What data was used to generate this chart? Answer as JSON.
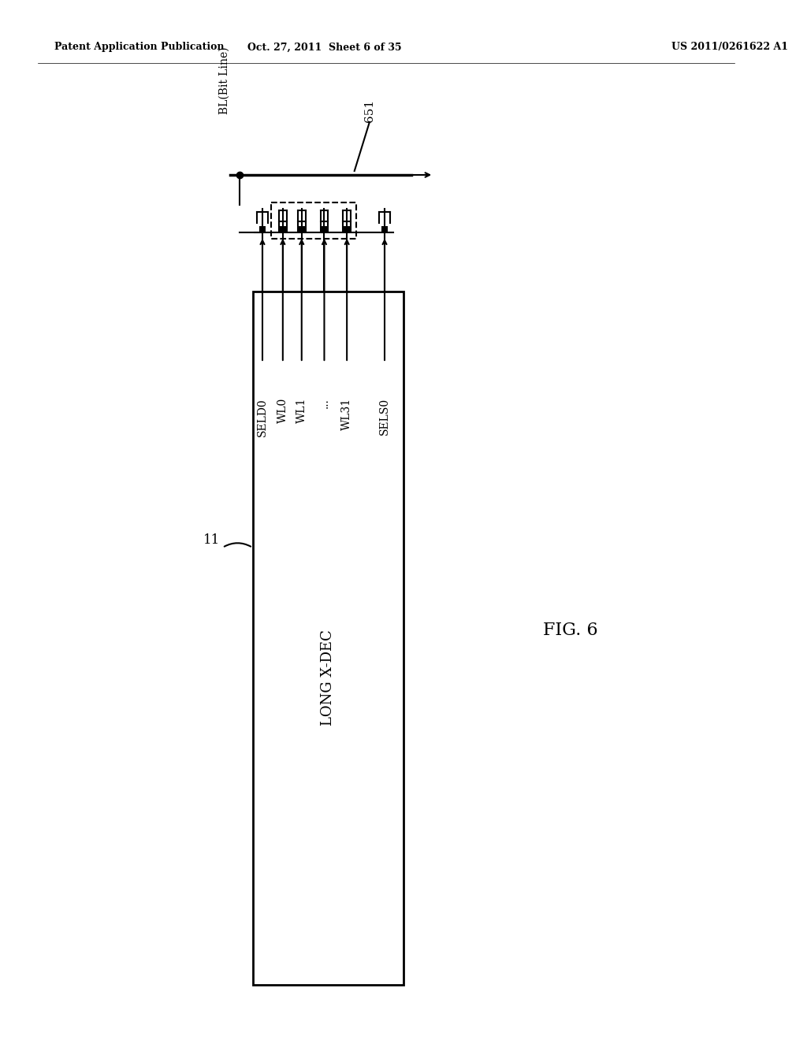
{
  "bg_color": "#ffffff",
  "header_left": "Patent Application Publication",
  "header_mid": "Oct. 27, 2011  Sheet 6 of 35",
  "header_right": "US 2011/0261622 A1",
  "fig_label": "FIG. 6",
  "box_label": "LONG X-DEC",
  "box_ref": "11",
  "bl_label": "BL(Bit Line)",
  "cell_label": "651",
  "signal_labels": [
    "SELD0",
    "WL0",
    "WL1",
    "...",
    "WL31",
    "SELS0"
  ],
  "lw": 1.5,
  "thick_lw": 2.0
}
